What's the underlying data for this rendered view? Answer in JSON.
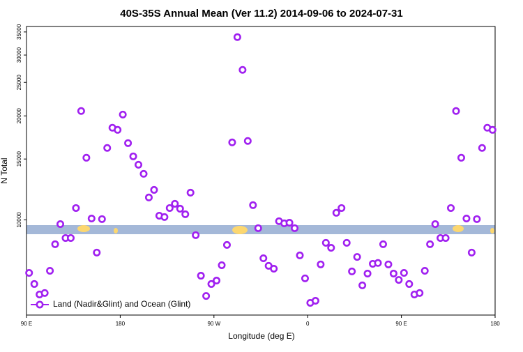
{
  "chart_data": {
    "type": "scatter",
    "title": "40S-35S Annual Mean (Ver 11.2)   2014-09-06 to 2024-07-31",
    "x_label": "Longitude (deg E)",
    "y_label": "N Total",
    "xlim": [
      90,
      540
    ],
    "ylim": [
      5300,
      36300
    ],
    "y_scale": "log",
    "legend": "lower left",
    "xticks": [
      {
        "value": 90,
        "label": "90 E"
      },
      180,
      {
        "value": 270,
        "label": "90 W"
      },
      {
        "value": 360,
        "label": "0"
      },
      {
        "value": 450,
        "label": "90 E"
      },
      {
        "value": 540,
        "label": "180"
      }
    ],
    "yticks": [
      10000,
      15000,
      20000,
      25000,
      30000,
      35000
    ],
    "series": [
      {
        "name": "Land (Nadir&Glint) and Ocean (Glint)",
        "color": "#a020f0",
        "x": [
          92.5,
          97.5,
          102.5,
          107.5,
          112.5,
          117.5,
          122.5,
          127.5,
          132.5,
          137.5,
          142.5,
          147.5,
          152.5,
          157.5,
          162.5,
          167.5,
          172.5,
          177.5,
          182.5,
          187.5,
          192.5,
          197.5,
          202.5,
          207.5,
          212.5,
          217.5,
          222.5,
          227.5,
          232.5,
          237.5,
          242.5,
          247.5,
          252.5,
          257.5,
          262.5,
          267.5,
          272.5,
          277.5,
          282.5,
          287.5,
          292.5,
          297.5,
          302.5,
          307.5,
          312.5,
          317.5,
          322.5,
          327.5,
          332.5,
          337.5,
          342.5,
          347.5,
          352.5,
          357.5,
          362.5,
          367.5,
          372.5,
          377.5,
          382.5,
          387.5,
          392.5,
          397.5,
          402.5,
          407.5,
          412.5,
          417.5,
          422.5,
          427.5,
          432.5,
          437.5,
          442.5,
          447.5,
          452.5,
          457.5,
          462.5,
          467.5,
          472.5,
          477.5,
          482.5,
          487.5,
          492.5,
          497.5,
          502.5,
          507.5,
          512.5,
          517.5,
          522.5,
          527.5,
          532.5,
          537.5
        ],
        "values": [
          7020,
          6520,
          6080,
          6140,
          7120,
          8500,
          9720,
          8860,
          8860,
          10820,
          20660,
          15130,
          10090,
          8040,
          10050,
          16150,
          18480,
          18220,
          20180,
          16680,
          15270,
          14440,
          13590,
          11610,
          12210,
          10280,
          10190,
          10820,
          11130,
          10770,
          10380,
          11990,
          9030,
          6890,
          6020,
          6520,
          6670,
          7390,
          8460,
          16760,
          33820,
          27180,
          16920,
          11030,
          9460,
          7740,
          7360,
          7220,
          9910,
          9770,
          9810,
          9460,
          7890,
          6770,
          5750,
          5830,
          7430,
          8580,
          8300,
          10480,
          10820,
          8580,
          7090,
          7810,
          6460,
          6990,
          7460,
          7500,
          8500,
          7430,
          6990,
          6700,
          7020,
          6520,
          6080,
          6140,
          7120,
          8500,
          9720,
          8860,
          8860,
          10820,
          20660,
          15130,
          10090,
          8040,
          10050,
          16150,
          18480,
          18220
        ]
      }
    ]
  }
}
